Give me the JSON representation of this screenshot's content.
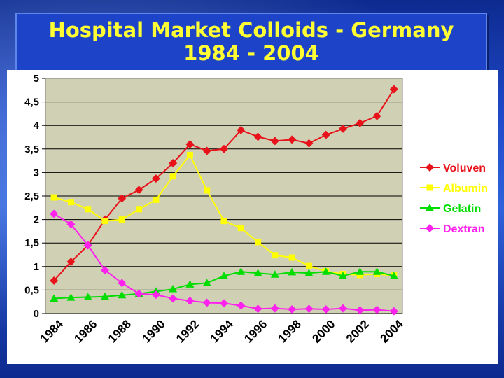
{
  "slide": {
    "title_line1": "Hospital Market Colloids - Germany",
    "title_line2": "1984 - 2004"
  },
  "chart_data": {
    "type": "line",
    "title": "",
    "xlabel": "",
    "ylabel": "",
    "x": [
      1984,
      1985,
      1986,
      1987,
      1988,
      1989,
      1990,
      1991,
      1992,
      1993,
      1994,
      1995,
      1996,
      1997,
      1998,
      1999,
      2000,
      2001,
      2002,
      2003,
      2004
    ],
    "x_tick_labels": [
      "1984",
      "1986",
      "1988",
      "1990",
      "1992",
      "1994",
      "1996",
      "1998",
      "2000",
      "2002",
      "2004"
    ],
    "ylim": [
      0,
      5
    ],
    "y_ticks": [
      "0",
      "0,5",
      "1",
      "1,5",
      "2",
      "2,5",
      "3",
      "3,5",
      "4",
      "4,5",
      "5"
    ],
    "grid": true,
    "plot_background": "#d0d0b4",
    "legend_placement": "right",
    "series": [
      {
        "name": "Voluven",
        "color": "#e8131a",
        "marker": "diamond",
        "values": [
          0.7,
          1.1,
          1.45,
          2.0,
          2.45,
          2.63,
          2.87,
          3.2,
          3.6,
          3.46,
          3.5,
          3.9,
          3.76,
          3.67,
          3.7,
          3.62,
          3.8,
          3.93,
          4.05,
          4.2,
          4.77
        ]
      },
      {
        "name": "Albumin",
        "color": "#ffff00",
        "marker": "square",
        "values": [
          2.47,
          2.37,
          2.22,
          1.97,
          2.0,
          2.22,
          2.42,
          2.92,
          3.37,
          2.62,
          1.97,
          1.82,
          1.52,
          1.24,
          1.19,
          1.01,
          0.9,
          0.84,
          0.82,
          0.84,
          0.81
        ]
      },
      {
        "name": "Gelatin",
        "color": "#00dd00",
        "marker": "triangle",
        "values": [
          0.32,
          0.34,
          0.35,
          0.36,
          0.39,
          0.42,
          0.47,
          0.52,
          0.62,
          0.65,
          0.8,
          0.89,
          0.86,
          0.83,
          0.88,
          0.86,
          0.89,
          0.8,
          0.89,
          0.89,
          0.8
        ]
      },
      {
        "name": "Dextran",
        "color": "#ff22ee",
        "marker": "diamond",
        "values": [
          2.12,
          1.9,
          1.45,
          0.92,
          0.65,
          0.42,
          0.4,
          0.32,
          0.27,
          0.23,
          0.22,
          0.17,
          0.1,
          0.11,
          0.09,
          0.1,
          0.09,
          0.11,
          0.07,
          0.08,
          0.05
        ]
      }
    ]
  }
}
